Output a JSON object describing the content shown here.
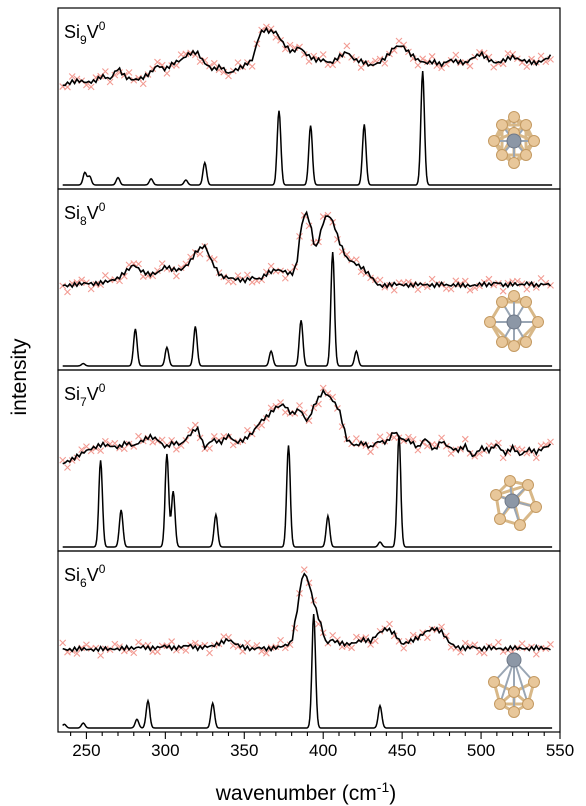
{
  "chart_data": {
    "type": "line",
    "xlabel": "wavenumber (cm",
    "xlabel_sup": "-1",
    "xlabel_end": ")",
    "ylabel": "intensity",
    "xlim": [
      232,
      550
    ],
    "xticks": [
      250,
      300,
      350,
      400,
      450,
      500,
      550
    ],
    "colors": {
      "experiment_line": "#000000",
      "experiment_marker": "#f08a80",
      "axis": "#000000"
    },
    "panels": [
      {
        "label_main": "Si",
        "label_sub1": "9",
        "label_mid": "V",
        "label_sup": "0",
        "structure_icon": "si9v-cluster-structure",
        "experiment": {
          "x": [
            235,
            240,
            245,
            250,
            255,
            260,
            265,
            270,
            275,
            280,
            285,
            290,
            295,
            300,
            305,
            310,
            315,
            320,
            325,
            330,
            335,
            340,
            345,
            350,
            355,
            360,
            363,
            366,
            370,
            375,
            380,
            385,
            390,
            395,
            400,
            405,
            410,
            415,
            420,
            425,
            430,
            435,
            440,
            445,
            450,
            455,
            460,
            465,
            470,
            475,
            480,
            485,
            490,
            495,
            500,
            505,
            510,
            515,
            520,
            525,
            530,
            535,
            540,
            545
          ],
          "y": [
            0.3,
            0.34,
            0.36,
            0.34,
            0.35,
            0.42,
            0.38,
            0.52,
            0.4,
            0.37,
            0.39,
            0.45,
            0.55,
            0.5,
            0.58,
            0.62,
            0.7,
            0.72,
            0.58,
            0.5,
            0.54,
            0.45,
            0.5,
            0.55,
            0.62,
            0.96,
            1.0,
            0.98,
            0.97,
            0.82,
            0.72,
            0.78,
            0.68,
            0.62,
            0.62,
            0.58,
            0.66,
            0.72,
            0.62,
            0.6,
            0.55,
            0.58,
            0.66,
            0.78,
            0.8,
            0.7,
            0.62,
            0.58,
            0.6,
            0.56,
            0.62,
            0.6,
            0.58,
            0.65,
            0.7,
            0.62,
            0.58,
            0.62,
            0.66,
            0.62,
            0.6,
            0.58,
            0.62,
            0.68
          ]
        },
        "calculated_peaks": [
          [
            249,
            0.1
          ],
          [
            252,
            0.07
          ],
          [
            270,
            0.06
          ],
          [
            291,
            0.05
          ],
          [
            313,
            0.04
          ],
          [
            325,
            0.18
          ],
          [
            372,
            0.6
          ],
          [
            392,
            0.48
          ],
          [
            426,
            0.49
          ],
          [
            463,
            0.92
          ]
        ]
      },
      {
        "label_main": "Si",
        "label_sub1": "8",
        "label_mid": "V",
        "label_sup": "0",
        "structure_icon": "si8v-cluster-structure",
        "experiment": {
          "x": [
            235,
            240,
            245,
            250,
            255,
            260,
            265,
            270,
            275,
            280,
            285,
            290,
            295,
            300,
            305,
            310,
            315,
            320,
            325,
            330,
            335,
            340,
            345,
            350,
            355,
            360,
            365,
            370,
            375,
            380,
            383,
            386,
            389,
            392,
            395,
            398,
            401,
            404,
            407,
            410,
            415,
            420,
            425,
            430,
            435,
            440,
            445,
            450,
            455,
            460,
            465,
            470,
            475,
            480,
            485,
            490,
            495,
            500,
            505,
            510,
            515,
            520,
            525,
            530,
            535,
            540,
            545
          ],
          "y": [
            0.06,
            0.06,
            0.08,
            0.09,
            0.08,
            0.1,
            0.12,
            0.15,
            0.24,
            0.32,
            0.24,
            0.2,
            0.22,
            0.3,
            0.26,
            0.26,
            0.34,
            0.5,
            0.56,
            0.34,
            0.18,
            0.16,
            0.14,
            0.12,
            0.16,
            0.14,
            0.22,
            0.26,
            0.24,
            0.2,
            0.3,
            0.8,
            1.0,
            0.82,
            0.5,
            0.7,
            0.92,
            0.94,
            0.82,
            0.62,
            0.4,
            0.34,
            0.28,
            0.18,
            0.06,
            0.06,
            0.08,
            0.07,
            0.06,
            0.08,
            0.07,
            0.06,
            0.08,
            0.06,
            0.07,
            0.06,
            0.06,
            0.08,
            0.07,
            0.1,
            0.06,
            0.08,
            0.07,
            0.09,
            0.06,
            0.08,
            0.07
          ]
        },
        "calculated_peaks": [
          [
            248,
            0.02
          ],
          [
            281,
            0.3
          ],
          [
            301,
            0.15
          ],
          [
            319,
            0.32
          ],
          [
            367,
            0.12
          ],
          [
            386,
            0.37
          ],
          [
            406,
            0.92
          ],
          [
            421,
            0.12
          ]
        ]
      },
      {
        "label_main": "Si",
        "label_sub1": "7",
        "label_mid": "V",
        "label_sup": "0",
        "structure_icon": "si7v-cluster-structure",
        "experiment": {
          "x": [
            235,
            240,
            245,
            250,
            255,
            260,
            265,
            270,
            275,
            280,
            285,
            290,
            295,
            300,
            305,
            310,
            315,
            320,
            325,
            330,
            335,
            340,
            345,
            350,
            355,
            360,
            365,
            370,
            375,
            380,
            385,
            390,
            395,
            400,
            405,
            410,
            415,
            420,
            425,
            430,
            435,
            440,
            445,
            450,
            455,
            460,
            465,
            470,
            475,
            480,
            485,
            490,
            495,
            500,
            505,
            510,
            515,
            520,
            525,
            530,
            535,
            540,
            545
          ],
          "y": [
            0.1,
            0.14,
            0.2,
            0.26,
            0.3,
            0.34,
            0.32,
            0.3,
            0.36,
            0.32,
            0.38,
            0.44,
            0.4,
            0.3,
            0.36,
            0.34,
            0.45,
            0.55,
            0.3,
            0.4,
            0.36,
            0.45,
            0.36,
            0.4,
            0.48,
            0.62,
            0.7,
            0.8,
            0.84,
            0.72,
            0.78,
            0.62,
            0.86,
            1.0,
            0.92,
            0.78,
            0.4,
            0.32,
            0.36,
            0.3,
            0.38,
            0.36,
            0.5,
            0.4,
            0.38,
            0.3,
            0.42,
            0.26,
            0.38,
            0.3,
            0.26,
            0.32,
            0.18,
            0.3,
            0.26,
            0.34,
            0.22,
            0.3,
            0.2,
            0.28,
            0.24,
            0.3,
            0.34
          ]
        },
        "calculated_peaks": [
          [
            259,
            0.7
          ],
          [
            272,
            0.3
          ],
          [
            301,
            0.75
          ],
          [
            305,
            0.45
          ],
          [
            332,
            0.26
          ],
          [
            378,
            0.82
          ],
          [
            403,
            0.25
          ],
          [
            436,
            0.04
          ],
          [
            448,
            0.9
          ]
        ]
      },
      {
        "label_main": "Si",
        "label_sub1": "6",
        "label_mid": "V",
        "label_sup": "0",
        "structure_icon": "si6v-cluster-structure",
        "experiment": {
          "x": [
            235,
            240,
            245,
            250,
            255,
            260,
            265,
            270,
            275,
            280,
            285,
            290,
            295,
            300,
            305,
            310,
            315,
            320,
            325,
            330,
            335,
            340,
            345,
            350,
            355,
            360,
            365,
            370,
            375,
            380,
            384,
            387,
            390,
            393,
            396,
            399,
            402,
            405,
            410,
            415,
            420,
            425,
            430,
            435,
            440,
            445,
            450,
            455,
            460,
            465,
            470,
            475,
            480,
            485,
            490,
            495,
            500,
            505,
            510,
            515,
            520,
            525,
            530,
            535,
            540,
            545
          ],
          "y": [
            0.04,
            0.03,
            0.05,
            0.04,
            0.03,
            0.05,
            0.04,
            0.04,
            0.06,
            0.05,
            0.07,
            0.05,
            0.06,
            0.08,
            0.05,
            0.07,
            0.09,
            0.05,
            0.07,
            0.08,
            0.12,
            0.16,
            0.1,
            0.06,
            0.04,
            0.06,
            0.04,
            0.06,
            0.08,
            0.12,
            0.6,
            1.0,
            0.94,
            0.7,
            0.5,
            0.32,
            0.1,
            0.16,
            0.12,
            0.1,
            0.12,
            0.16,
            0.14,
            0.24,
            0.3,
            0.24,
            0.1,
            0.14,
            0.18,
            0.26,
            0.3,
            0.26,
            0.12,
            0.06,
            0.05,
            0.07,
            0.04,
            0.06,
            0.05,
            0.04,
            0.06,
            0.05,
            0.04,
            0.06,
            0.05,
            0.04
          ]
        },
        "calculated_peaks": [
          [
            236,
            0.03
          ],
          [
            248,
            0.04
          ],
          [
            282,
            0.07
          ],
          [
            289,
            0.22
          ],
          [
            330,
            0.2
          ],
          [
            394,
            0.92
          ],
          [
            436,
            0.18
          ]
        ]
      }
    ]
  }
}
